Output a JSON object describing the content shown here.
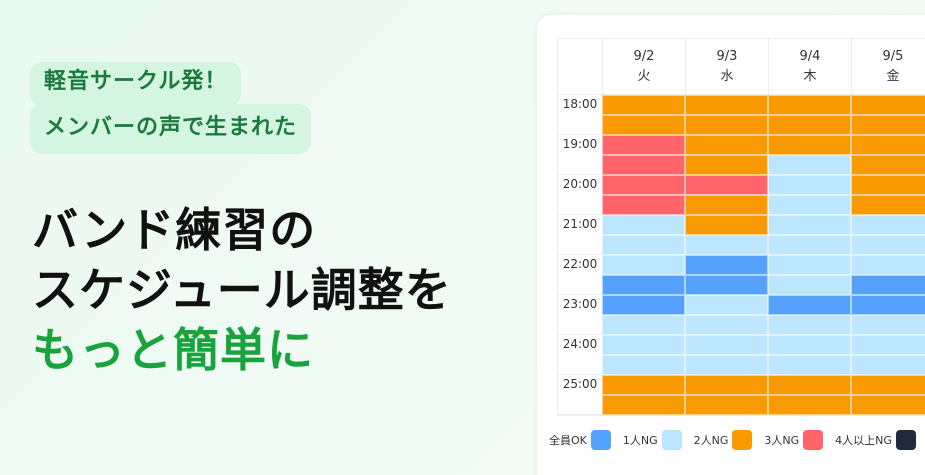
{
  "badge": {
    "line1": "軽音サークル発！",
    "line2": "メンバーの声で生まれた"
  },
  "headline": {
    "line1": "バンド練習の",
    "line2": "スケジュール調整を",
    "line3": "もっと簡単に"
  },
  "colors": {
    "ok": "#55a2fd",
    "ng1": "#bce6fd",
    "ng2": "#f99a03",
    "ng3": "#fe6469",
    "ng4": "#1f2a3a",
    "accent_green": "#18a33c"
  },
  "schedule": {
    "days": [
      {
        "date": "9/2",
        "weekday": "火"
      },
      {
        "date": "9/3",
        "weekday": "水"
      },
      {
        "date": "9/4",
        "weekday": "木"
      },
      {
        "date": "9/5",
        "weekday": "金"
      }
    ],
    "times": [
      "18:00",
      "19:00",
      "20:00",
      "21:00",
      "22:00",
      "23:00",
      "24:00",
      "25:00"
    ],
    "slots_per_hour": 2,
    "status_by_day": [
      [
        "ng2",
        "ng2",
        "ng3",
        "ng3",
        "ng3",
        "ng3",
        "ng1",
        "ng1",
        "ng1",
        "ok",
        "ok",
        "ng1",
        "ng1",
        "ng1",
        "ng2",
        "ng2"
      ],
      [
        "ng2",
        "ng2",
        "ng2",
        "ng2",
        "ng3",
        "ng2",
        "ng2",
        "ng1",
        "ok",
        "ok",
        "ng1",
        "ng1",
        "ng1",
        "ng1",
        "ng2",
        "ng2"
      ],
      [
        "ng2",
        "ng2",
        "ng2",
        "ng1",
        "ng1",
        "ng1",
        "ng1",
        "ng1",
        "ng1",
        "ng1",
        "ok",
        "ng1",
        "ng1",
        "ng1",
        "ng2",
        "ng2"
      ],
      [
        "ng2",
        "ng2",
        "ng2",
        "ng2",
        "ng2",
        "ng2",
        "ng1",
        "ng1",
        "ng1",
        "ok",
        "ok",
        "ng1",
        "ng1",
        "ng1",
        "ng2",
        "ng2"
      ]
    ]
  },
  "legend": [
    {
      "label": "全員OK",
      "key": "ok"
    },
    {
      "label": "1人NG",
      "key": "ng1"
    },
    {
      "label": "2人NG",
      "key": "ng2"
    },
    {
      "label": "3人NG",
      "key": "ng3"
    },
    {
      "label": "4人以上NG",
      "key": "ng4"
    }
  ]
}
